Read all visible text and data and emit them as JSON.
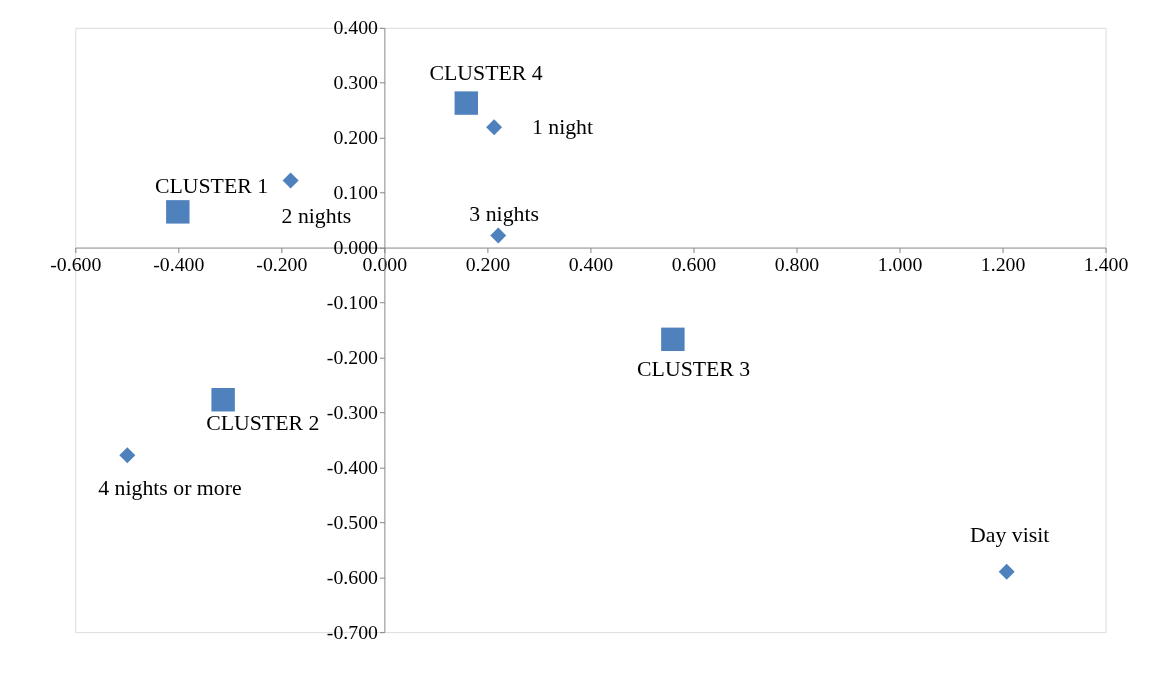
{
  "chart_data": {
    "type": "scatter",
    "xlim": [
      -0.6,
      1.4
    ],
    "ylim": [
      -0.7,
      0.4
    ],
    "xticks": [
      {
        "value": -0.6,
        "label": "-0.600"
      },
      {
        "value": -0.4,
        "label": "-0.400"
      },
      {
        "value": -0.2,
        "label": "-0.200"
      },
      {
        "value": 0,
        "label": "0.000"
      },
      {
        "value": 0.2,
        "label": "0.200"
      },
      {
        "value": 0.4,
        "label": "0.400"
      },
      {
        "value": 0.6,
        "label": "0.600"
      },
      {
        "value": 0.8,
        "label": "0.800"
      },
      {
        "value": 1.0,
        "label": "1.000"
      },
      {
        "value": 1.2,
        "label": "1.200"
      },
      {
        "value": 1.4,
        "label": "1.400"
      }
    ],
    "yticks": [
      {
        "value": -0.7,
        "label": "-0.700"
      },
      {
        "value": -0.6,
        "label": "-0.600"
      },
      {
        "value": -0.5,
        "label": "-0.500"
      },
      {
        "value": -0.4,
        "label": "-0.400"
      },
      {
        "value": -0.3,
        "label": "-0.300"
      },
      {
        "value": -0.2,
        "label": "-0.200"
      },
      {
        "value": -0.1,
        "label": "-0.100"
      },
      {
        "value": 0,
        "label": "0.000"
      },
      {
        "value": 0.1,
        "label": "0.100"
      },
      {
        "value": 0.2,
        "label": "0.200"
      },
      {
        "value": 0.3,
        "label": "0.300"
      },
      {
        "value": 0.4,
        "label": "0.400"
      }
    ],
    "grid": false,
    "series": [
      {
        "color": "#4f81bd",
        "marker": "square",
        "x": [
          -0.401,
          -0.313,
          0.56,
          0.159
        ],
        "values": [
          0.065,
          -0.277,
          -0.167,
          0.263
        ]
      },
      {
        "color": "#4f81bd",
        "marker": "diamond",
        "x": [
          0.213,
          -0.182,
          0.221,
          -0.499,
          1.208
        ],
        "values": [
          0.219,
          0.122,
          0.022,
          -0.378,
          -0.59
        ]
      }
    ],
    "annotations": [
      {
        "text": "CLUSTER 4",
        "x": 0.159,
        "y": 0.263
      },
      {
        "text": "1 night",
        "x": 0.213,
        "y": 0.219
      },
      {
        "text": "CLUSTER 1",
        "x": -0.401,
        "y": 0.065
      },
      {
        "text": "2 nights",
        "x": -0.182,
        "y": 0.122
      },
      {
        "text": "3 nights",
        "x": 0.221,
        "y": 0.022
      },
      {
        "text": "CLUSTER 3",
        "x": 0.56,
        "y": -0.167
      },
      {
        "text": "CLUSTER 2",
        "x": -0.313,
        "y": -0.277
      },
      {
        "text": "4 nights or more",
        "x": -0.499,
        "y": -0.378
      },
      {
        "text": "Day visit",
        "x": 1.208,
        "y": -0.59
      }
    ]
  }
}
